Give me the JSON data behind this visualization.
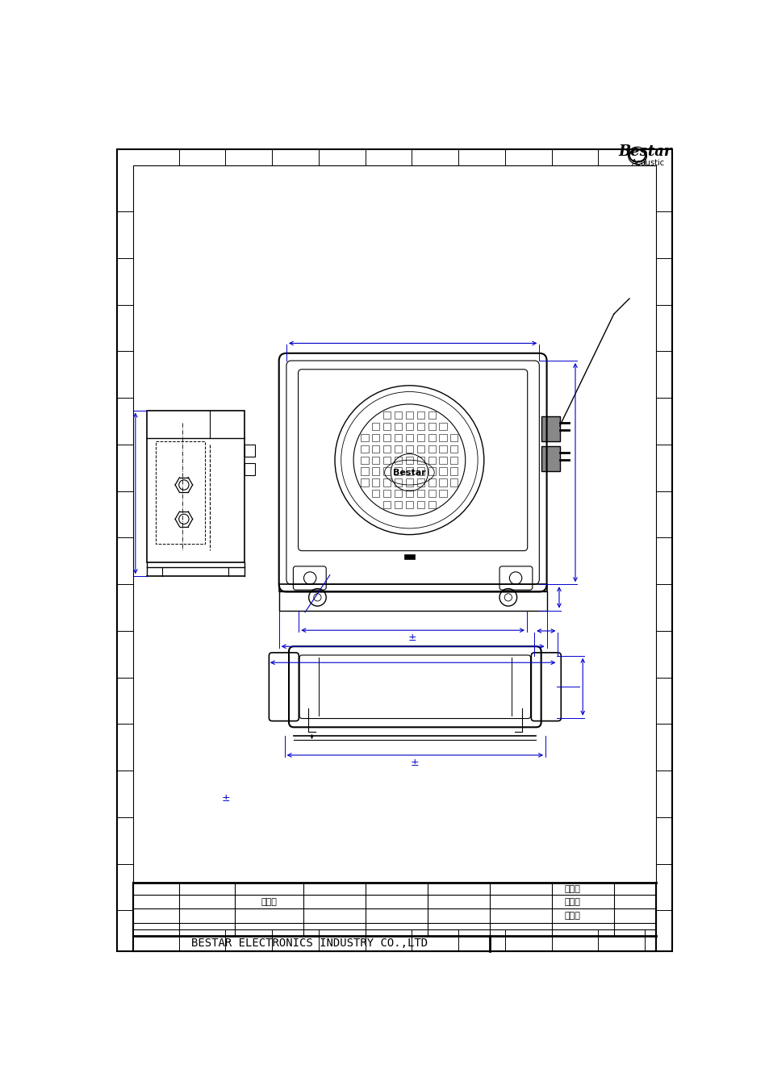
{
  "page_bg": "#ffffff",
  "dc": "#000000",
  "bc": "#0000cc",
  "company": "BESTAR ELECTRONICS INDUSTRY CO.,LTD",
  "names_right": [
    "廣明才",
    "陳小东",
    "程久生"
  ],
  "name_left": "廣明才",
  "brand": "Bestar",
  "pm": "±"
}
